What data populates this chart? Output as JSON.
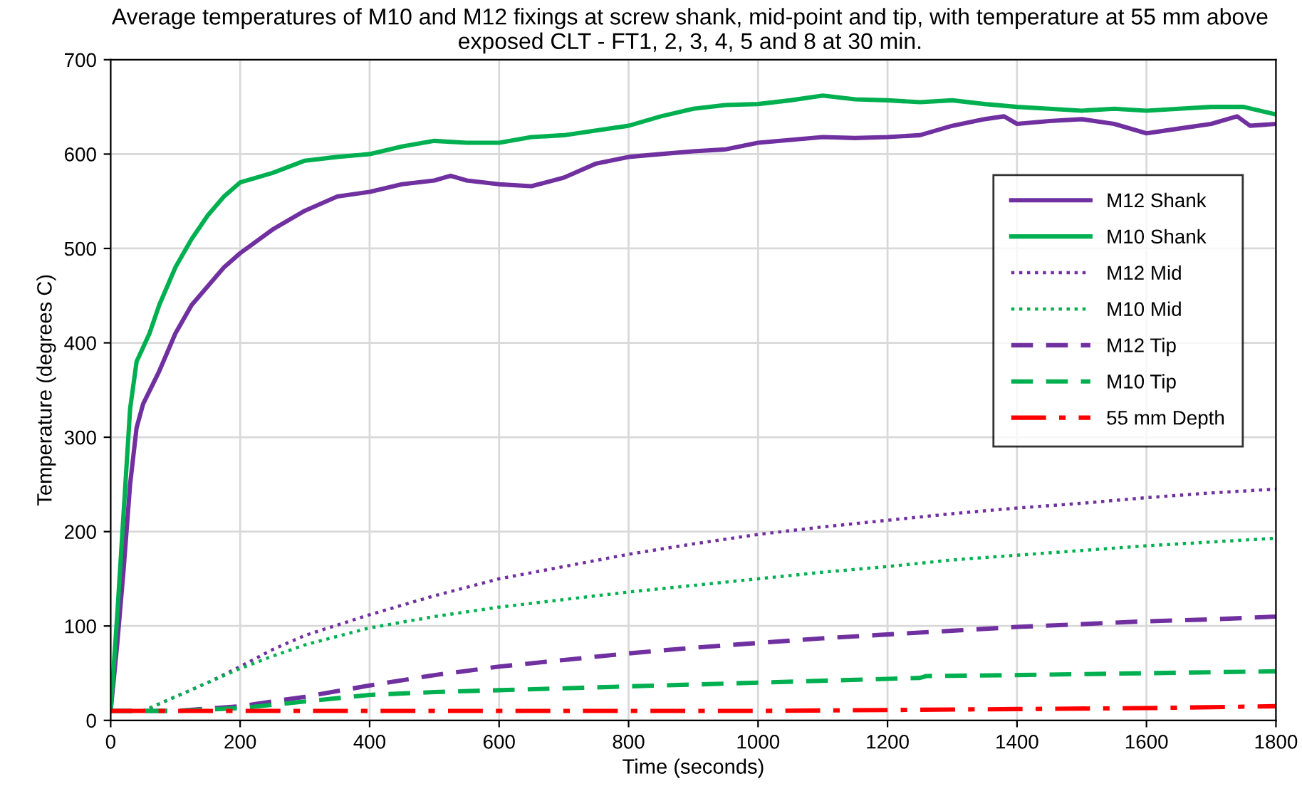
{
  "chart_data": {
    "type": "line",
    "title": "Average temperatures of M10 and M12 fixings at screw shank, mid-point and tip, with temperature at 55 mm above exposed CLT - FT1, 2, 3, 4, 5 and 8 at 30 min.",
    "xlabel": "Time (seconds)",
    "ylabel": "Temperature (degrees C)",
    "xlim": [
      0,
      1800
    ],
    "xticks": [
      0,
      200,
      400,
      600,
      800,
      1000,
      1200,
      1400,
      1600,
      1800
    ],
    "ylim": [
      0,
      700
    ],
    "yticks": [
      0,
      100,
      200,
      300,
      400,
      500,
      600,
      700
    ],
    "grid": true,
    "legend": "right",
    "marker": "none",
    "series": [
      {
        "name": "M12 Shank",
        "color": "#7030a0",
        "line_style": "solid",
        "x": [
          0,
          10,
          20,
          30,
          40,
          50,
          75,
          100,
          125,
          150,
          175,
          200,
          250,
          300,
          350,
          400,
          450,
          500,
          525,
          550,
          600,
          650,
          700,
          750,
          800,
          850,
          900,
          950,
          1000,
          1050,
          1100,
          1150,
          1200,
          1250,
          1300,
          1350,
          1380,
          1400,
          1450,
          1500,
          1550,
          1600,
          1650,
          1700,
          1740,
          1760,
          1800
        ],
        "values": [
          10,
          80,
          160,
          250,
          310,
          335,
          370,
          410,
          440,
          460,
          480,
          495,
          520,
          540,
          555,
          560,
          568,
          572,
          577,
          572,
          568,
          566,
          575,
          590,
          597,
          600,
          603,
          605,
          612,
          615,
          618,
          617,
          618,
          620,
          630,
          637,
          640,
          632,
          635,
          637,
          632,
          622,
          627,
          632,
          640,
          630,
          632
        ]
      },
      {
        "name": "M10 Shank",
        "color": "#00b050",
        "line_style": "solid",
        "x": [
          0,
          10,
          20,
          30,
          40,
          60,
          75,
          100,
          125,
          150,
          175,
          200,
          250,
          300,
          350,
          400,
          450,
          500,
          550,
          600,
          650,
          700,
          750,
          800,
          850,
          900,
          950,
          1000,
          1050,
          1100,
          1150,
          1200,
          1250,
          1300,
          1350,
          1400,
          1450,
          1500,
          1550,
          1600,
          1650,
          1700,
          1750,
          1800
        ],
        "values": [
          10,
          110,
          220,
          330,
          380,
          410,
          440,
          480,
          510,
          535,
          555,
          570,
          580,
          593,
          597,
          600,
          608,
          614,
          612,
          612,
          618,
          620,
          625,
          630,
          640,
          648,
          652,
          653,
          657,
          662,
          658,
          657,
          655,
          657,
          653,
          650,
          648,
          646,
          648,
          646,
          648,
          650,
          650,
          642
        ]
      },
      {
        "name": "M12 Mid",
        "color": "#7030a0",
        "line_style": "dotted",
        "x": [
          0,
          50,
          100,
          150,
          200,
          250,
          300,
          400,
          500,
          600,
          700,
          800,
          900,
          1000,
          1100,
          1200,
          1300,
          1400,
          1500,
          1600,
          1700,
          1800
        ],
        "values": [
          10,
          10,
          25,
          40,
          57,
          75,
          90,
          112,
          132,
          150,
          163,
          176,
          187,
          197,
          205,
          212,
          219,
          225,
          230,
          236,
          241,
          245
        ]
      },
      {
        "name": "M10 Mid",
        "color": "#00b050",
        "line_style": "dotted",
        "x": [
          0,
          50,
          100,
          150,
          200,
          250,
          300,
          400,
          500,
          600,
          700,
          800,
          900,
          1000,
          1100,
          1200,
          1300,
          1400,
          1500,
          1600,
          1700,
          1800
        ],
        "values": [
          10,
          10,
          25,
          40,
          55,
          68,
          80,
          98,
          110,
          120,
          128,
          136,
          143,
          150,
          157,
          163,
          170,
          175,
          180,
          185,
          189,
          193
        ]
      },
      {
        "name": "M12 Tip",
        "color": "#7030a0",
        "line_style": "dashed",
        "x": [
          0,
          100,
          200,
          300,
          400,
          500,
          600,
          700,
          800,
          900,
          1000,
          1100,
          1200,
          1300,
          1400,
          1500,
          1600,
          1700,
          1800
        ],
        "values": [
          10,
          10,
          15,
          25,
          37,
          48,
          57,
          64,
          71,
          77,
          82,
          87,
          91,
          95,
          99,
          102,
          105,
          107,
          110
        ]
      },
      {
        "name": "M10 Tip",
        "color": "#00b050",
        "line_style": "dashed",
        "x": [
          0,
          100,
          200,
          300,
          400,
          500,
          600,
          700,
          800,
          900,
          1000,
          1100,
          1200,
          1250,
          1260,
          1400,
          1600,
          1800
        ],
        "values": [
          10,
          10,
          13,
          20,
          27,
          30,
          32,
          34,
          36,
          38,
          40,
          42,
          44,
          45,
          47,
          48,
          50,
          52
        ]
      },
      {
        "name": "55 mm Depth",
        "color": "#ff0000",
        "line_style": "dashdot",
        "x": [
          0,
          200,
          400,
          600,
          800,
          1000,
          1200,
          1400,
          1600,
          1800
        ],
        "values": [
          10,
          10,
          10,
          10,
          10,
          10,
          11,
          12,
          13,
          15
        ]
      }
    ]
  }
}
